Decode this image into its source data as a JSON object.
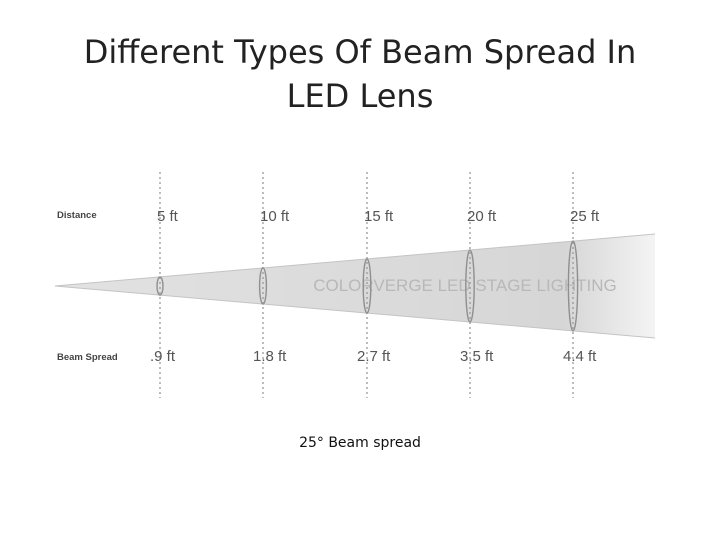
{
  "title": {
    "line1": "Different Types Of Beam Spread In",
    "line2": "LED Lens"
  },
  "diagram": {
    "distance_label": "Distance",
    "spread_label": "Beam Spread",
    "watermark": "COLORVERGE LED STAGE LIGHTING",
    "stations": [
      {
        "distance": "5 ft",
        "spread": ".9 ft"
      },
      {
        "distance": "10 ft",
        "spread": "1.8 ft"
      },
      {
        "distance": "15 ft",
        "spread": "2.7 ft"
      },
      {
        "distance": "20 ft",
        "spread": "3.5 ft"
      },
      {
        "distance": "25 ft",
        "spread": "4.4 ft"
      }
    ],
    "colors": {
      "beam_fill": "#dcdcdc",
      "beam_edge": "#9a9a9a",
      "guide_line": "#9a9a9a",
      "text": "#555555",
      "watermark": "#b8b8b8"
    }
  },
  "caption": "25° Beam spread"
}
